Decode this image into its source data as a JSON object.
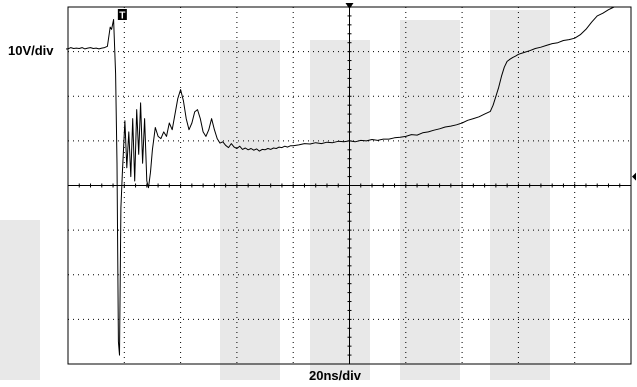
{
  "chart_data": {
    "type": "line",
    "title": "",
    "xlabel": "20ns/div",
    "ylabel": "10V/div",
    "x_units": "ns",
    "y_units": "V",
    "xlim": [
      0,
      200
    ],
    "ylim": [
      -40,
      40
    ],
    "x_divisions": 10,
    "y_divisions": 8,
    "grid": "dotted",
    "trigger_marker": "T",
    "series": [
      {
        "points": [
          [
            0.0,
            30.6
          ],
          [
            1.0,
            30.9
          ],
          [
            2.0,
            30.7
          ],
          [
            3.0,
            30.8
          ],
          [
            4.0,
            30.7
          ],
          [
            5.0,
            30.9
          ],
          [
            6.0,
            30.6
          ],
          [
            7.0,
            30.8
          ],
          [
            8.0,
            30.9
          ],
          [
            9.0,
            30.7
          ],
          [
            10.0,
            30.8
          ],
          [
            11.0,
            30.6
          ],
          [
            12.0,
            30.8
          ],
          [
            13.0,
            30.9
          ],
          [
            14.0,
            31.2
          ],
          [
            15.0,
            35.5
          ],
          [
            15.5,
            35.0
          ],
          [
            16.2,
            37.2
          ],
          [
            16.9,
            25.0
          ],
          [
            17.4,
            5.0
          ],
          [
            17.9,
            -35.0
          ],
          [
            18.3,
            -38.0
          ],
          [
            18.8,
            -5.0
          ],
          [
            19.3,
            2.5
          ],
          [
            20.2,
            14.5
          ],
          [
            20.9,
            4.0
          ],
          [
            21.6,
            12.0
          ],
          [
            22.3,
            2.0
          ],
          [
            23.0,
            15.0
          ],
          [
            23.7,
            1.0
          ],
          [
            24.4,
            17.0
          ],
          [
            25.1,
            7.0
          ],
          [
            25.8,
            18.5
          ],
          [
            26.5,
            5.0
          ],
          [
            27.2,
            15.0
          ],
          [
            28.0,
            1.0
          ],
          [
            28.6,
            -0.5
          ],
          [
            29.3,
            3.0
          ],
          [
            30.0,
            8.0
          ],
          [
            31.0,
            13.0
          ],
          [
            32.0,
            11.0
          ],
          [
            33.0,
            10.5
          ],
          [
            34.0,
            12.0
          ],
          [
            35.0,
            11.0
          ],
          [
            36.0,
            14.0
          ],
          [
            37.0,
            12.5
          ],
          [
            38.0,
            16.0
          ],
          [
            39.0,
            19.5
          ],
          [
            40.0,
            21.5
          ],
          [
            41.0,
            19.0
          ],
          [
            42.0,
            15.0
          ],
          [
            43.0,
            12.5
          ],
          [
            44.0,
            14.0
          ],
          [
            45.0,
            16.5
          ],
          [
            46.0,
            17.0
          ],
          [
            47.0,
            15.0
          ],
          [
            48.0,
            12.0
          ],
          [
            49.0,
            11.0
          ],
          [
            50.0,
            12.5
          ],
          [
            51.0,
            15.0
          ],
          [
            52.0,
            12.5
          ],
          [
            53.0,
            10.5
          ],
          [
            54.0,
            9.5
          ],
          [
            55.0,
            9.8
          ],
          [
            56.0,
            9.0
          ],
          [
            57.0,
            8.5
          ],
          [
            58.0,
            9.4
          ],
          [
            59.0,
            8.6
          ],
          [
            60.0,
            8.3
          ],
          [
            61.0,
            8.8
          ],
          [
            62.0,
            8.1
          ],
          [
            63.0,
            8.4
          ],
          [
            64.0,
            8.0
          ],
          [
            65.0,
            8.3
          ],
          [
            66.0,
            7.9
          ],
          [
            67.0,
            8.2
          ],
          [
            68.0,
            7.7
          ],
          [
            69.0,
            8.1
          ],
          [
            70.0,
            8.0
          ],
          [
            71.0,
            8.3
          ],
          [
            72.0,
            8.1
          ],
          [
            73.0,
            8.4
          ],
          [
            74.0,
            8.3
          ],
          [
            75.0,
            8.6
          ],
          [
            76.0,
            8.5
          ],
          [
            77.0,
            8.8
          ],
          [
            78.0,
            8.6
          ],
          [
            79.0,
            8.9
          ],
          [
            80.0,
            8.9
          ],
          [
            82.0,
            9.1
          ],
          [
            84.0,
            9.4
          ],
          [
            86.0,
            9.3
          ],
          [
            88.0,
            9.6
          ],
          [
            90.0,
            9.4
          ],
          [
            92.0,
            9.7
          ],
          [
            94.0,
            9.6
          ],
          [
            96.0,
            9.9
          ],
          [
            98.0,
            9.8
          ],
          [
            100.0,
            10.0
          ],
          [
            102.0,
            9.8
          ],
          [
            104.0,
            10.1
          ],
          [
            106.0,
            10.0
          ],
          [
            108.0,
            10.3
          ],
          [
            110.0,
            10.1
          ],
          [
            112.0,
            10.4
          ],
          [
            114.0,
            10.4
          ],
          [
            116.0,
            10.7
          ],
          [
            118.0,
            10.8
          ],
          [
            120.0,
            11.0
          ],
          [
            122.0,
            11.4
          ],
          [
            124.0,
            11.3
          ],
          [
            126.0,
            11.8
          ],
          [
            128.0,
            12.0
          ],
          [
            130.0,
            12.4
          ],
          [
            132.0,
            12.7
          ],
          [
            134.0,
            13.1
          ],
          [
            136.0,
            13.3
          ],
          [
            138.0,
            13.6
          ],
          [
            140.0,
            14.0
          ],
          [
            142.0,
            14.6
          ],
          [
            144.0,
            15.0
          ],
          [
            146.0,
            15.4
          ],
          [
            148.0,
            16.0
          ],
          [
            150.0,
            16.6
          ],
          [
            151.0,
            18.0
          ],
          [
            152.0,
            20.0
          ],
          [
            153.0,
            22.0
          ],
          [
            154.0,
            24.5
          ],
          [
            155.0,
            26.5
          ],
          [
            156.0,
            27.8
          ],
          [
            157.0,
            28.3
          ],
          [
            158.0,
            28.7
          ],
          [
            159.0,
            29.0
          ],
          [
            160.0,
            29.4
          ],
          [
            162.0,
            29.8
          ],
          [
            164.0,
            30.2
          ],
          [
            166.0,
            30.7
          ],
          [
            168.0,
            31.0
          ],
          [
            170.0,
            31.4
          ],
          [
            172.0,
            31.8
          ],
          [
            174.0,
            32.0
          ],
          [
            176.0,
            32.5
          ],
          [
            178.0,
            32.7
          ],
          [
            180.0,
            33.0
          ],
          [
            182.0,
            33.8
          ],
          [
            184.0,
            35.0
          ],
          [
            186.0,
            36.6
          ],
          [
            188.0,
            38.0
          ],
          [
            190.0,
            38.6
          ],
          [
            192.0,
            39.4
          ],
          [
            194.0,
            40.0
          ]
        ]
      }
    ]
  }
}
